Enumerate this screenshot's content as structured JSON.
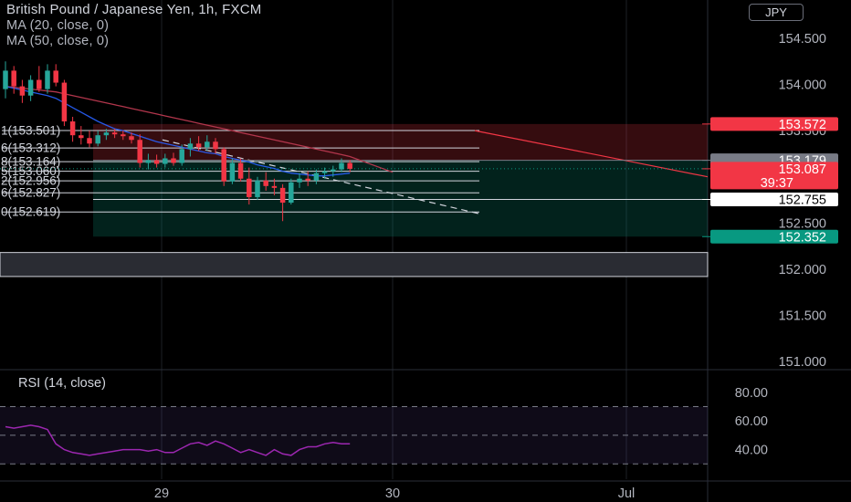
{
  "header": {
    "title": "British Pound / Japanese Yen, 1h, FXCM",
    "ma1": "MA (20, close, 0)",
    "ma2": "MA (50, close, 0)",
    "currency": "JPY"
  },
  "price_scale": {
    "ticks": [
      "154.500",
      "154.000",
      "153.500",
      "152.500",
      "152.000",
      "151.500",
      "151.000"
    ],
    "labels": [
      {
        "text": "153.572",
        "value": 153.572,
        "bg": "#f23645",
        "fg": "#ffffff"
      },
      {
        "text": "153.179",
        "value": 153.179,
        "bg": "#787b86",
        "fg": "#ffffff"
      },
      {
        "text": "153.087",
        "sub": "39:37",
        "value": 153.087,
        "bg": "#f23645",
        "fg": "#ffffff"
      },
      {
        "text": "152.755",
        "value": 152.755,
        "bg": "#ffffff",
        "fg": "#000000"
      },
      {
        "text": "152.352",
        "value": 152.352,
        "bg": "#089981",
        "fg": "#ffffff"
      }
    ]
  },
  "fib_levels": [
    {
      "text": "1(153.501)",
      "value": 153.501
    },
    {
      "text": "6(153.312)",
      "value": 153.312
    },
    {
      "text": "8(153.164)",
      "value": 153.164
    },
    {
      "text": "5(153.060)",
      "value": 153.06
    },
    {
      "text": "2(152.956)",
      "value": 152.956
    },
    {
      "text": "6(152.827)",
      "value": 152.827
    },
    {
      "text": "0(152.619)",
      "value": 152.619
    }
  ],
  "position_tool": {
    "stop": 153.572,
    "entry": 153.179,
    "target": 152.352
  },
  "gray_band": {
    "from": 151.92,
    "to": 152.18
  },
  "chart_data": {
    "type": "candlestick",
    "title": "British Pound / Japanese Yen, 1h, FXCM",
    "x_ticks": [
      "29",
      "30",
      "Jul"
    ],
    "price_ylim": [
      150.9,
      154.85
    ],
    "candles": [
      {
        "o": 153.95,
        "h": 154.25,
        "l": 153.85,
        "c": 154.15
      },
      {
        "o": 154.15,
        "h": 154.2,
        "l": 153.9,
        "c": 153.98
      },
      {
        "o": 153.98,
        "h": 154.05,
        "l": 153.8,
        "c": 153.88
      },
      {
        "o": 153.88,
        "h": 154.1,
        "l": 153.82,
        "c": 154.05
      },
      {
        "o": 154.05,
        "h": 154.2,
        "l": 153.92,
        "c": 153.95
      },
      {
        "o": 153.95,
        "h": 154.22,
        "l": 153.9,
        "c": 154.15
      },
      {
        "o": 154.15,
        "h": 154.22,
        "l": 153.98,
        "c": 154.02
      },
      {
        "o": 154.02,
        "h": 154.05,
        "l": 153.55,
        "c": 153.6
      },
      {
        "o": 153.6,
        "h": 153.65,
        "l": 153.38,
        "c": 153.45
      },
      {
        "o": 153.45,
        "h": 153.55,
        "l": 153.35,
        "c": 153.42
      },
      {
        "o": 153.42,
        "h": 153.5,
        "l": 153.32,
        "c": 153.36
      },
      {
        "o": 153.36,
        "h": 153.5,
        "l": 153.33,
        "c": 153.45
      },
      {
        "o": 153.45,
        "h": 153.52,
        "l": 153.4,
        "c": 153.48
      },
      {
        "o": 153.48,
        "h": 153.52,
        "l": 153.42,
        "c": 153.46
      },
      {
        "o": 153.46,
        "h": 153.5,
        "l": 153.4,
        "c": 153.44
      },
      {
        "o": 153.44,
        "h": 153.48,
        "l": 153.36,
        "c": 153.4
      },
      {
        "o": 153.4,
        "h": 153.46,
        "l": 153.1,
        "c": 153.15
      },
      {
        "o": 153.15,
        "h": 153.25,
        "l": 153.08,
        "c": 153.18
      },
      {
        "o": 153.18,
        "h": 153.24,
        "l": 153.1,
        "c": 153.14
      },
      {
        "o": 153.14,
        "h": 153.25,
        "l": 153.1,
        "c": 153.2
      },
      {
        "o": 153.2,
        "h": 153.26,
        "l": 153.12,
        "c": 153.15
      },
      {
        "o": 153.15,
        "h": 153.35,
        "l": 153.12,
        "c": 153.3
      },
      {
        "o": 153.3,
        "h": 153.42,
        "l": 153.22,
        "c": 153.36
      },
      {
        "o": 153.36,
        "h": 153.44,
        "l": 153.28,
        "c": 153.32
      },
      {
        "o": 153.32,
        "h": 153.45,
        "l": 153.28,
        "c": 153.38
      },
      {
        "o": 153.38,
        "h": 153.42,
        "l": 153.25,
        "c": 153.3
      },
      {
        "o": 153.3,
        "h": 153.32,
        "l": 152.9,
        "c": 152.95
      },
      {
        "o": 152.95,
        "h": 153.2,
        "l": 152.92,
        "c": 153.15
      },
      {
        "o": 153.15,
        "h": 153.2,
        "l": 152.95,
        "c": 152.98
      },
      {
        "o": 152.98,
        "h": 153.1,
        "l": 152.7,
        "c": 152.78
      },
      {
        "o": 152.78,
        "h": 153.0,
        "l": 152.75,
        "c": 152.96
      },
      {
        "o": 152.96,
        "h": 153.05,
        "l": 152.85,
        "c": 152.9
      },
      {
        "o": 152.9,
        "h": 152.98,
        "l": 152.8,
        "c": 152.88
      },
      {
        "o": 152.88,
        "h": 152.92,
        "l": 152.52,
        "c": 152.72
      },
      {
        "o": 152.72,
        "h": 152.98,
        "l": 152.7,
        "c": 152.94
      },
      {
        "o": 152.94,
        "h": 153.04,
        "l": 152.88,
        "c": 152.98
      },
      {
        "o": 152.98,
        "h": 153.06,
        "l": 152.9,
        "c": 152.96
      },
      {
        "o": 152.96,
        "h": 153.08,
        "l": 152.92,
        "c": 153.04
      },
      {
        "o": 153.04,
        "h": 153.1,
        "l": 152.98,
        "c": 153.06
      },
      {
        "o": 153.06,
        "h": 153.12,
        "l": 153.0,
        "c": 153.08
      },
      {
        "o": 153.08,
        "h": 153.2,
        "l": 153.05,
        "c": 153.15
      },
      {
        "o": 153.15,
        "h": 153.18,
        "l": 153.05,
        "c": 153.087
      }
    ],
    "ma20": [
      153.98,
      153.96,
      153.94,
      153.92,
      153.9,
      153.88,
      153.85,
      153.8,
      153.75,
      153.7,
      153.65,
      153.6,
      153.56,
      153.52,
      153.5,
      153.47,
      153.44,
      153.41,
      153.38,
      153.36,
      153.34,
      153.32,
      153.3,
      153.28,
      153.26,
      153.25,
      153.22,
      153.2,
      153.18,
      153.16,
      153.13,
      153.11,
      153.09,
      153.06,
      153.04,
      153.03,
      153.02,
      153.01,
      153.01,
      153.02,
      153.03,
      153.04
    ],
    "ma50": [
      153.98,
      153.97,
      153.96,
      153.95,
      153.94,
      153.93,
      153.92,
      153.9,
      153.88,
      153.86,
      153.84,
      153.82,
      153.8,
      153.78,
      153.76,
      153.74,
      153.72,
      153.7,
      153.68,
      153.66,
      153.64,
      153.62,
      153.6,
      153.58,
      153.56,
      153.54,
      153.52,
      153.5,
      153.48,
      153.46,
      153.44,
      153.42,
      153.4,
      153.38,
      153.36,
      153.34,
      153.32,
      153.3,
      153.28,
      153.26,
      153.24,
      153.22
    ],
    "projection": [
      153.5,
      153.0
    ],
    "trendline": [
      153.4,
      152.6
    ],
    "rsi": {
      "title": "RSI (14, close)",
      "ticks": [
        "80.00",
        "60.00",
        "40.00"
      ],
      "bands": [
        70,
        50,
        30
      ],
      "ylim": [
        20,
        85
      ],
      "values": [
        56,
        55,
        56,
        57,
        56,
        54,
        44,
        40,
        38,
        37,
        36,
        37,
        38,
        39,
        40,
        40,
        40,
        39,
        40,
        38,
        38,
        41,
        44,
        45,
        43,
        46,
        44,
        41,
        38,
        40,
        38,
        36,
        40,
        37,
        36,
        40,
        42,
        42,
        44,
        45,
        44,
        44
      ]
    }
  }
}
